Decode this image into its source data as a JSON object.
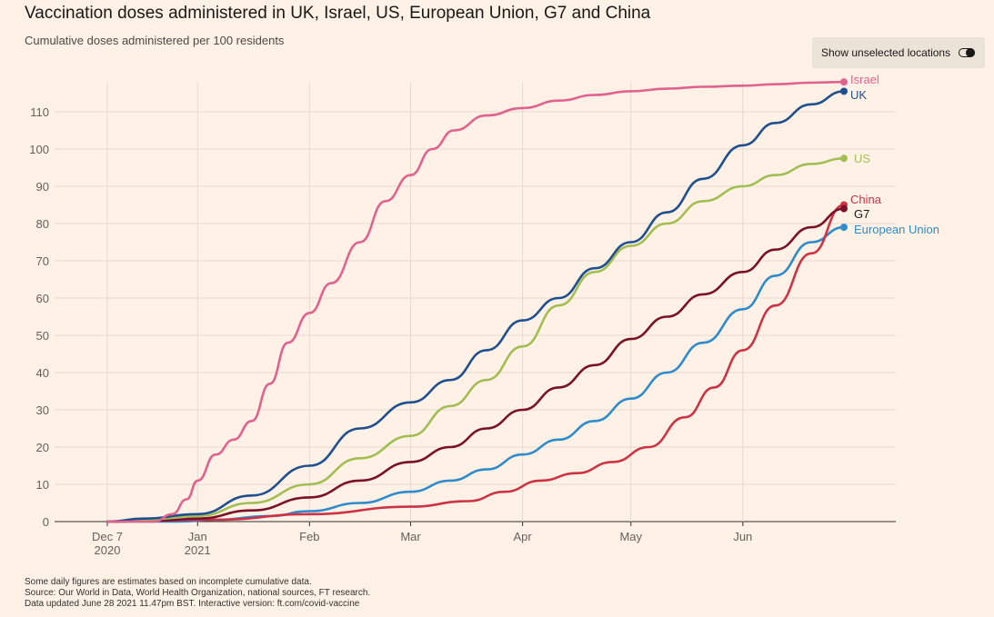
{
  "title": "Vaccination doses administered in UK, Israel, US, European Union, G7 and China",
  "subtitle": "Cumulative doses administered per 100 residents",
  "toggle": {
    "label": "Show unselected locations",
    "icon": "toggle-icon"
  },
  "footnotes": [
    "Some daily figures are estimates based on incomplete cumulative data.",
    "Source: Our World in Data, World Health Organization, national sources, FT research.",
    "Data updated June 28 2021 11.47pm BST. Interactive version: ft.com/covid-vaccine"
  ],
  "chart_data": {
    "type": "line",
    "title": "Vaccination doses administered in UK, Israel, US, European Union, G7 and China",
    "ylabel": "Cumulative doses administered per 100 residents",
    "xlabel": "",
    "ylim": [
      0,
      120
    ],
    "yticks": [
      0,
      10,
      20,
      30,
      40,
      50,
      60,
      70,
      80,
      90,
      100,
      110
    ],
    "xlim_days": [
      -7,
      204
    ],
    "xticks": [
      {
        "day": 0,
        "line1": "Dec 7",
        "line2": "2020"
      },
      {
        "day": 25,
        "line1": "Jan",
        "line2": "2021"
      },
      {
        "day": 56,
        "line1": "Feb",
        "line2": ""
      },
      {
        "day": 84,
        "line1": "Mar",
        "line2": ""
      },
      {
        "day": 115,
        "line1": "Apr",
        "line2": ""
      },
      {
        "day": 145,
        "line1": "May",
        "line2": ""
      },
      {
        "day": 176,
        "line1": "Jun",
        "line2": ""
      }
    ],
    "x_unit": "days since Dec 7 2020",
    "grid": true,
    "series": [
      {
        "name": "European Union",
        "color": "#2e8bcc",
        "points": [
          [
            0,
            0
          ],
          [
            20,
            0
          ],
          [
            30,
            0.5
          ],
          [
            45,
            1.5
          ],
          [
            56,
            2.8
          ],
          [
            70,
            5
          ],
          [
            84,
            8
          ],
          [
            95,
            11
          ],
          [
            105,
            14
          ],
          [
            115,
            18
          ],
          [
            125,
            22
          ],
          [
            135,
            27
          ],
          [
            145,
            33
          ],
          [
            155,
            40
          ],
          [
            165,
            48
          ],
          [
            176,
            57
          ],
          [
            185,
            66
          ],
          [
            195,
            75
          ],
          [
            204,
            79
          ]
        ]
      },
      {
        "name": "China",
        "color": "#cc3344",
        "points": [
          [
            0,
            0
          ],
          [
            30,
            0.5
          ],
          [
            56,
            2
          ],
          [
            84,
            4
          ],
          [
            100,
            5.5
          ],
          [
            110,
            8
          ],
          [
            120,
            11
          ],
          [
            130,
            13
          ],
          [
            140,
            16
          ],
          [
            150,
            20
          ],
          [
            160,
            28
          ],
          [
            168,
            36
          ],
          [
            176,
            46
          ],
          [
            185,
            58
          ],
          [
            195,
            72
          ],
          [
            204,
            85
          ]
        ]
      },
      {
        "name": "G7",
        "color": "#7a1129",
        "points": [
          [
            0,
            0
          ],
          [
            15,
            0.3
          ],
          [
            25,
            0.8
          ],
          [
            40,
            3
          ],
          [
            56,
            6.5
          ],
          [
            70,
            11
          ],
          [
            84,
            16
          ],
          [
            95,
            20
          ],
          [
            105,
            25
          ],
          [
            115,
            30
          ],
          [
            125,
            36
          ],
          [
            135,
            42
          ],
          [
            145,
            49
          ],
          [
            155,
            55
          ],
          [
            165,
            61
          ],
          [
            176,
            67
          ],
          [
            185,
            73
          ],
          [
            195,
            79
          ],
          [
            204,
            84
          ]
        ]
      },
      {
        "name": "US",
        "color": "#a2be53",
        "points": [
          [
            0,
            0
          ],
          [
            10,
            0.5
          ],
          [
            25,
            1.5
          ],
          [
            40,
            5
          ],
          [
            56,
            10
          ],
          [
            70,
            17
          ],
          [
            84,
            23
          ],
          [
            95,
            31
          ],
          [
            105,
            38
          ],
          [
            115,
            47
          ],
          [
            125,
            58
          ],
          [
            135,
            67
          ],
          [
            145,
            74
          ],
          [
            155,
            80
          ],
          [
            165,
            86
          ],
          [
            176,
            90
          ],
          [
            185,
            93
          ],
          [
            195,
            96
          ],
          [
            204,
            97.5
          ]
        ]
      },
      {
        "name": "UK",
        "color": "#1f4f8f",
        "points": [
          [
            0,
            0
          ],
          [
            10,
            0.8
          ],
          [
            25,
            2
          ],
          [
            40,
            7
          ],
          [
            56,
            15
          ],
          [
            70,
            25
          ],
          [
            84,
            32
          ],
          [
            95,
            38
          ],
          [
            105,
            46
          ],
          [
            115,
            54
          ],
          [
            125,
            60
          ],
          [
            135,
            68
          ],
          [
            145,
            75
          ],
          [
            155,
            83
          ],
          [
            165,
            92
          ],
          [
            176,
            101
          ],
          [
            185,
            107
          ],
          [
            195,
            112
          ],
          [
            204,
            115.5
          ]
        ]
      },
      {
        "name": "Israel",
        "color": "#e0638f",
        "points": [
          [
            0,
            0
          ],
          [
            13,
            0
          ],
          [
            18,
            2
          ],
          [
            22,
            6
          ],
          [
            25,
            11
          ],
          [
            30,
            18
          ],
          [
            35,
            22
          ],
          [
            40,
            27
          ],
          [
            45,
            37
          ],
          [
            50,
            48
          ],
          [
            56,
            56
          ],
          [
            62,
            64
          ],
          [
            70,
            75
          ],
          [
            77,
            86
          ],
          [
            84,
            93
          ],
          [
            90,
            100
          ],
          [
            96,
            105
          ],
          [
            105,
            109
          ],
          [
            115,
            111
          ],
          [
            125,
            113
          ],
          [
            135,
            114.5
          ],
          [
            145,
            115.5
          ],
          [
            155,
            116.2
          ],
          [
            165,
            116.7
          ],
          [
            176,
            117
          ],
          [
            185,
            117.4
          ],
          [
            195,
            117.8
          ],
          [
            204,
            118
          ]
        ]
      }
    ],
    "end_labels": [
      {
        "name": "Israel"
      },
      {
        "name": "UK"
      },
      {
        "name": "US"
      },
      {
        "name": "China"
      },
      {
        "name": "G7"
      },
      {
        "name": "European Union"
      }
    ]
  }
}
